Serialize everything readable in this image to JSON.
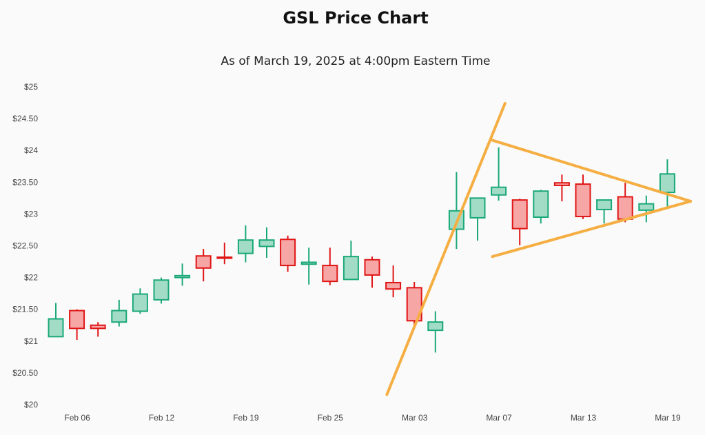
{
  "title": "GSL Price Chart",
  "subtitle": "As of March 19, 2025 at 4:00pm Eastern Time",
  "colors": {
    "up_fill": "#a3dcc6",
    "up_stroke": "#1aa879",
    "down_fill": "#f7a6a6",
    "down_stroke": "#e01515",
    "trendline": "#f5ae42",
    "background": "#fafafa"
  },
  "chart_data": {
    "type": "candlestick",
    "yticks": [
      "$25",
      "$24.50",
      "$24",
      "$23.50",
      "$23",
      "$22.50",
      "$22",
      "$21.50",
      "$21",
      "$20.50",
      "$20"
    ],
    "ytick_values": [
      25,
      24.5,
      24,
      23.5,
      23,
      22.5,
      22,
      21.5,
      21,
      20.5,
      20
    ],
    "ylim": [
      20,
      25
    ],
    "xticks": [
      "Feb 06",
      "Feb 12",
      "Feb 19",
      "Feb 25",
      "Mar 03",
      "Mar 07",
      "Mar 13",
      "Mar 19"
    ],
    "xtick_index": [
      1,
      5,
      9,
      13,
      17,
      21,
      25,
      29
    ],
    "grid": false,
    "candles": [
      {
        "o": 21.07,
        "h": 21.6,
        "l": 21.07,
        "c": 21.35
      },
      {
        "o": 21.48,
        "h": 21.5,
        "l": 21.02,
        "c": 21.2
      },
      {
        "o": 21.25,
        "h": 21.3,
        "l": 21.07,
        "c": 21.2
      },
      {
        "o": 21.3,
        "h": 21.65,
        "l": 21.23,
        "c": 21.48
      },
      {
        "o": 21.47,
        "h": 21.83,
        "l": 21.43,
        "c": 21.74
      },
      {
        "o": 21.65,
        "h": 22.0,
        "l": 21.59,
        "c": 21.96
      },
      {
        "o": 22.0,
        "h": 22.22,
        "l": 21.87,
        "c": 22.03
      },
      {
        "o": 22.34,
        "h": 22.45,
        "l": 21.94,
        "c": 22.15
      },
      {
        "o": 22.32,
        "h": 22.55,
        "l": 22.21,
        "c": 22.31
      },
      {
        "o": 22.38,
        "h": 22.82,
        "l": 22.24,
        "c": 22.59
      },
      {
        "o": 22.49,
        "h": 22.79,
        "l": 22.31,
        "c": 22.59
      },
      {
        "o": 22.6,
        "h": 22.66,
        "l": 22.09,
        "c": 22.19
      },
      {
        "o": 22.21,
        "h": 22.47,
        "l": 21.89,
        "c": 22.24
      },
      {
        "o": 22.19,
        "h": 22.47,
        "l": 21.88,
        "c": 21.94
      },
      {
        "o": 21.97,
        "h": 22.58,
        "l": 21.97,
        "c": 22.33
      },
      {
        "o": 22.28,
        "h": 22.33,
        "l": 21.84,
        "c": 22.04
      },
      {
        "o": 21.92,
        "h": 22.19,
        "l": 21.69,
        "c": 21.82
      },
      {
        "o": 21.84,
        "h": 21.93,
        "l": 21.22,
        "c": 21.32
      },
      {
        "o": 21.17,
        "h": 21.47,
        "l": 20.82,
        "c": 21.3
      },
      {
        "o": 22.76,
        "h": 23.66,
        "l": 22.45,
        "c": 23.05
      },
      {
        "o": 22.94,
        "h": 23.25,
        "l": 22.58,
        "c": 23.25
      },
      {
        "o": 23.3,
        "h": 24.05,
        "l": 23.21,
        "c": 23.42
      },
      {
        "o": 23.22,
        "h": 23.24,
        "l": 22.51,
        "c": 22.77
      },
      {
        "o": 22.95,
        "h": 23.38,
        "l": 22.85,
        "c": 23.36
      },
      {
        "o": 23.49,
        "h": 23.62,
        "l": 23.2,
        "c": 23.45
      },
      {
        "o": 23.47,
        "h": 23.62,
        "l": 22.92,
        "c": 22.96
      },
      {
        "o": 23.07,
        "h": 23.22,
        "l": 22.85,
        "c": 23.22
      },
      {
        "o": 23.27,
        "h": 23.49,
        "l": 22.87,
        "c": 22.92
      },
      {
        "o": 23.06,
        "h": 23.29,
        "l": 22.87,
        "c": 23.16
      },
      {
        "o": 23.34,
        "h": 23.86,
        "l": 23.11,
        "c": 23.63
      }
    ],
    "trendlines": [
      {
        "x1": 15.7,
        "y1": 20.16,
        "x2": 21.3,
        "y2": 24.74
      },
      {
        "x1": 20.7,
        "y1": 24.16,
        "x2": 30.1,
        "y2": 23.2
      },
      {
        "x1": 20.7,
        "y1": 22.33,
        "x2": 30.1,
        "y2": 23.2
      }
    ]
  }
}
